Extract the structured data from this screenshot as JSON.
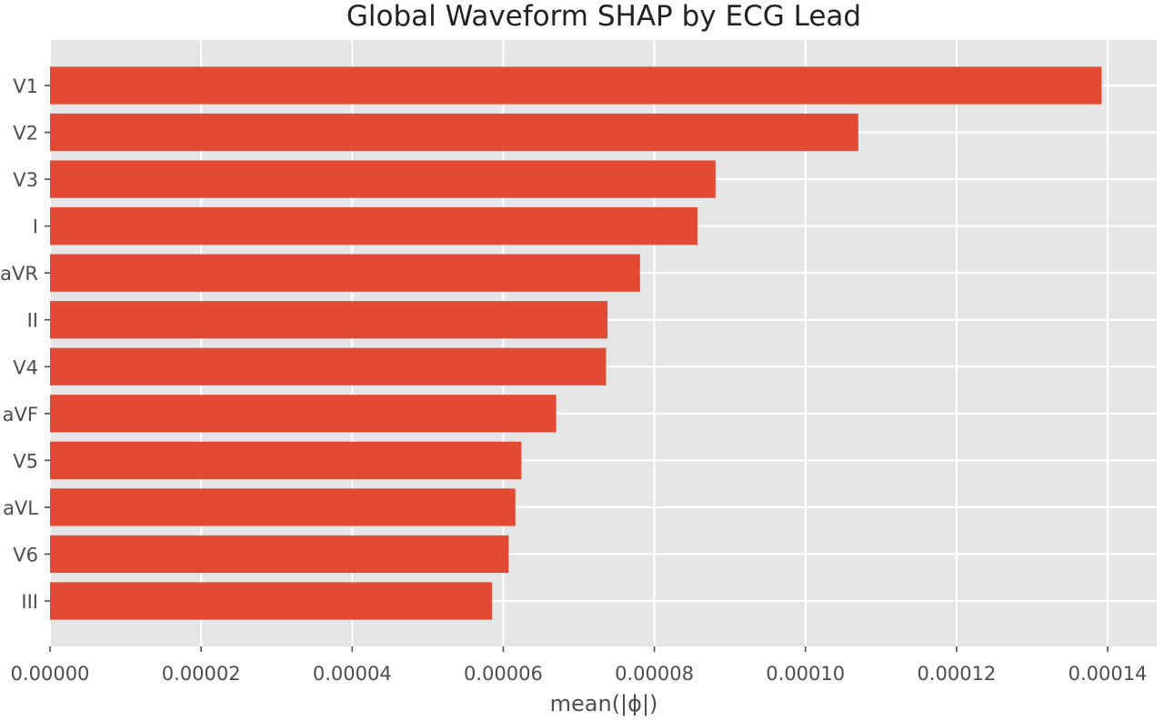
{
  "chart_data": {
    "type": "bar",
    "orientation": "horizontal",
    "title": "Global Waveform SHAP by ECG Lead",
    "xlabel": "mean(|ϕ|)",
    "ylabel": "",
    "categories": [
      "V1",
      "V2",
      "V3",
      "I",
      "aVR",
      "II",
      "V4",
      "aVF",
      "V5",
      "aVL",
      "V6",
      "III"
    ],
    "values": [
      0.0001392,
      0.000107,
      8.81e-05,
      8.57e-05,
      7.81e-05,
      7.38e-05,
      7.36e-05,
      6.7e-05,
      6.24e-05,
      6.16e-05,
      6.07e-05,
      5.85e-05
    ],
    "xlim": [
      0,
      0.0001465
    ],
    "xticks": [
      0,
      2e-05,
      4e-05,
      6e-05,
      8e-05,
      0.0001,
      0.00012,
      0.00014
    ],
    "xtick_labels": [
      "0.00000",
      "0.00002",
      "0.00004",
      "0.00006",
      "0.00008",
      "0.00010",
      "0.00012",
      "0.00014"
    ],
    "grid": true,
    "legend": "none",
    "colors": {
      "bar": "#E24A33",
      "plot_background": "#E5E5E5",
      "grid": "#FFFFFF",
      "text": "#4D4D4D",
      "title": "#222222"
    }
  }
}
